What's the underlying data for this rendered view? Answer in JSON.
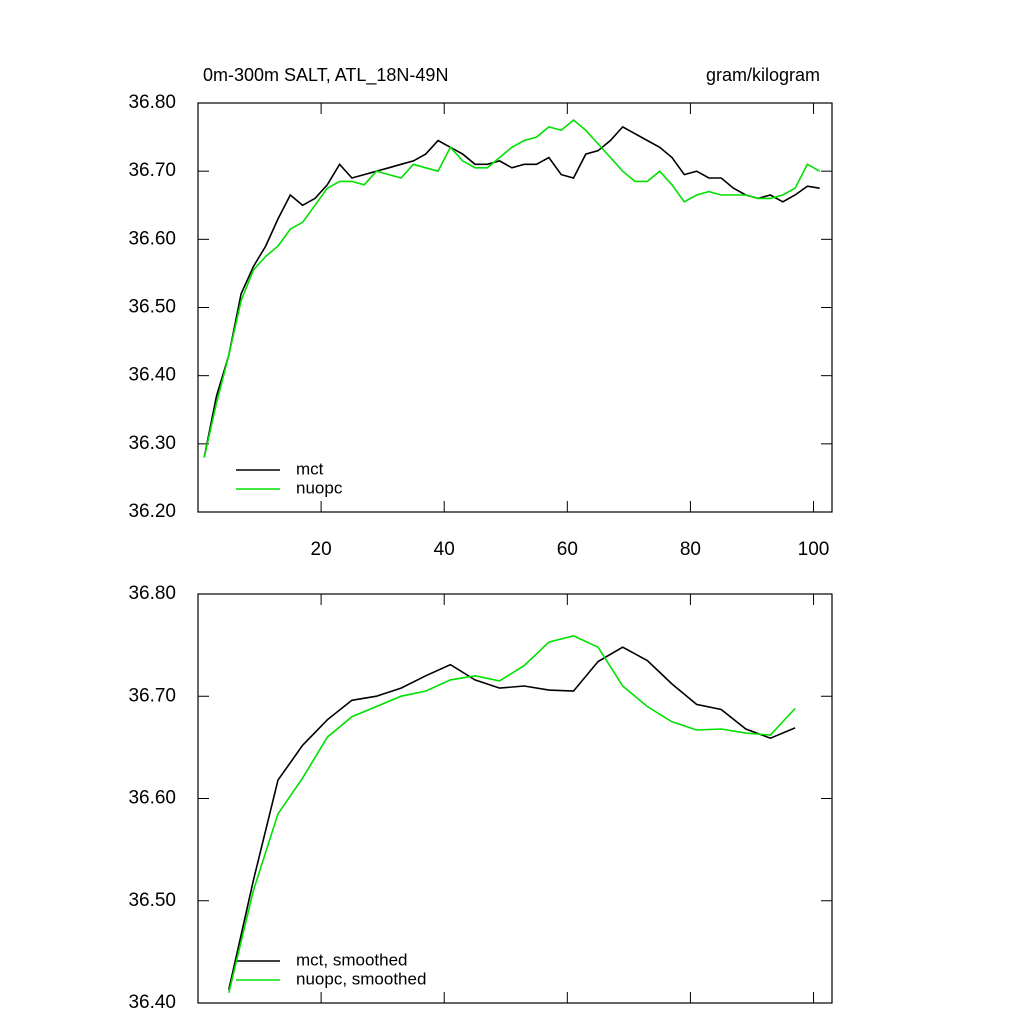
{
  "chart_data": [
    {
      "type": "line",
      "title": "0m-300m SALT, ATL_18N-49N",
      "units": "gram/kilogram",
      "x": [
        1,
        3,
        5,
        7,
        9,
        11,
        13,
        15,
        17,
        19,
        21,
        23,
        25,
        27,
        29,
        31,
        33,
        35,
        37,
        39,
        41,
        43,
        45,
        47,
        49,
        51,
        53,
        55,
        57,
        59,
        61,
        63,
        65,
        67,
        69,
        71,
        73,
        75,
        77,
        79,
        81,
        83,
        85,
        87,
        89,
        91,
        93,
        95,
        97,
        99,
        101
      ],
      "series": [
        {
          "name": "mct",
          "color": "#000000",
          "values": [
            36.28,
            36.37,
            36.43,
            36.52,
            36.56,
            36.59,
            36.63,
            36.665,
            36.65,
            36.66,
            36.68,
            36.71,
            36.69,
            36.695,
            36.7,
            36.705,
            36.71,
            36.715,
            36.725,
            36.745,
            36.735,
            36.725,
            36.71,
            36.71,
            36.715,
            36.705,
            36.71,
            36.71,
            36.72,
            36.695,
            36.69,
            36.725,
            36.73,
            36.745,
            36.765,
            36.755,
            36.745,
            36.735,
            36.72,
            36.695,
            36.7,
            36.69,
            36.69,
            36.675,
            36.665,
            36.66,
            36.665,
            36.655,
            36.665,
            36.678,
            36.675
          ]
        },
        {
          "name": "nuopc",
          "color": "#00e000",
          "values": [
            36.28,
            36.36,
            36.43,
            36.51,
            36.555,
            36.575,
            36.59,
            36.615,
            36.625,
            36.65,
            36.675,
            36.685,
            36.685,
            36.68,
            36.7,
            36.695,
            36.69,
            36.71,
            36.705,
            36.7,
            36.735,
            36.715,
            36.705,
            36.705,
            36.72,
            36.735,
            36.745,
            36.75,
            36.765,
            36.76,
            36.775,
            36.76,
            36.74,
            36.72,
            36.7,
            36.685,
            36.685,
            36.7,
            36.68,
            36.655,
            36.665,
            36.67,
            36.665,
            36.665,
            36.665,
            36.66,
            36.66,
            36.665,
            36.675,
            36.71,
            36.7
          ]
        }
      ],
      "xlim": [
        0,
        103
      ],
      "xticks": [
        20,
        40,
        60,
        80,
        100
      ],
      "ylim": [
        36.2,
        36.8
      ],
      "yticks": [
        {
          "value": 36.2,
          "label": "36.20"
        },
        {
          "value": 36.3,
          "label": "36.30"
        },
        {
          "value": 36.4,
          "label": "36.40"
        },
        {
          "value": 36.5,
          "label": "36.50"
        },
        {
          "value": 36.6,
          "label": "36.60"
        },
        {
          "value": 36.7,
          "label": "36.70"
        },
        {
          "value": 36.8,
          "label": "36.80"
        }
      ],
      "legend": "lower left"
    },
    {
      "type": "line",
      "x": [
        5,
        9,
        13,
        17,
        21,
        25,
        29,
        33,
        37,
        41,
        45,
        49,
        53,
        57,
        61,
        65,
        69,
        73,
        77,
        81,
        85,
        89,
        93,
        97
      ],
      "series": [
        {
          "name": "mct, smoothed",
          "color": "#000000",
          "values": [
            36.413,
            36.52,
            36.618,
            36.652,
            36.677,
            36.696,
            36.7,
            36.708,
            36.72,
            36.731,
            36.716,
            36.708,
            36.71,
            36.706,
            36.705,
            36.734,
            36.748,
            36.735,
            36.712,
            36.692,
            36.687,
            36.668,
            36.659,
            36.669
          ]
        },
        {
          "name": "nuopc, smoothed",
          "color": "#00e000",
          "values": [
            36.41,
            36.51,
            36.585,
            36.62,
            36.66,
            36.68,
            36.69,
            36.7,
            36.705,
            36.716,
            36.72,
            36.715,
            36.73,
            36.753,
            36.759,
            36.748,
            36.71,
            36.69,
            36.675,
            36.667,
            36.668,
            36.664,
            36.662,
            36.688
          ]
        }
      ],
      "xlim": [
        0,
        103
      ],
      "xticks": [
        20,
        40,
        60,
        80,
        100
      ],
      "ylim": [
        36.4,
        36.8
      ],
      "yticks": [
        {
          "value": 36.4,
          "label": "36.40"
        },
        {
          "value": 36.5,
          "label": "36.50"
        },
        {
          "value": 36.6,
          "label": "36.60"
        },
        {
          "value": 36.7,
          "label": "36.70"
        },
        {
          "value": 36.8,
          "label": "36.80"
        }
      ],
      "legend": "lower left"
    }
  ]
}
